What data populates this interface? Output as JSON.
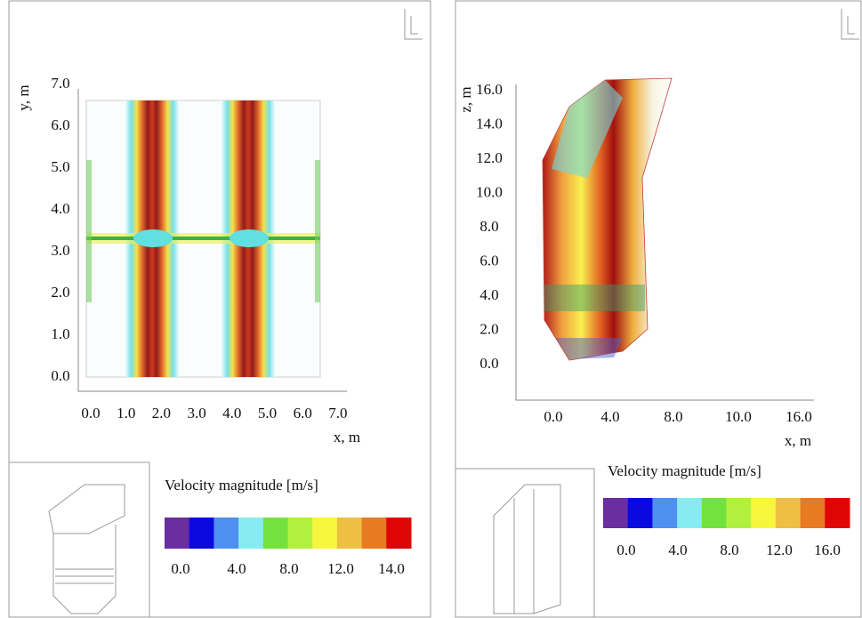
{
  "panels": [
    {
      "y_label": "y, m",
      "x_label": "x, m",
      "yticks": [
        "0.0",
        "1.0",
        "2.0",
        "3.0",
        "4.0",
        "5.0",
        "6.0",
        "7.0"
      ],
      "xticks": [
        "0.0",
        "1.0",
        "2.0",
        "3.0",
        "4.0",
        "5.0",
        "6.0",
        "7.0"
      ],
      "colorbar": {
        "title": "Velocity magnitude [m/s]",
        "colors": [
          "#6a2ea0",
          "#0a0ae0",
          "#4f8ff0",
          "#86ecf2",
          "#74e23e",
          "#b2f040",
          "#f6f63e",
          "#efbf44",
          "#e87a22",
          "#e00606"
        ],
        "ticks": [
          "0.0",
          "4.0",
          "8.0",
          "12.0",
          "14.0"
        ]
      }
    },
    {
      "y_label": "z, m",
      "x_label": "x, m",
      "yticks": [
        "0.0",
        "2.0",
        "4.0",
        "6.0",
        "8.0",
        "10.0",
        "12.0",
        "14.0",
        "16.0"
      ],
      "xticks": [
        "0.0",
        "4.0",
        "8.0",
        "10.0",
        "16.0"
      ],
      "colorbar": {
        "title": "Velocity magnitude [m/s]",
        "colors": [
          "#6a2ea0",
          "#0a0ae0",
          "#4f8ff0",
          "#86ecf2",
          "#74e23e",
          "#b2f040",
          "#f6f63e",
          "#efbf44",
          "#e87a22",
          "#e00606"
        ],
        "ticks": [
          "0.0",
          "4.0",
          "8.0",
          "12.0",
          "16.0"
        ]
      }
    }
  ]
}
